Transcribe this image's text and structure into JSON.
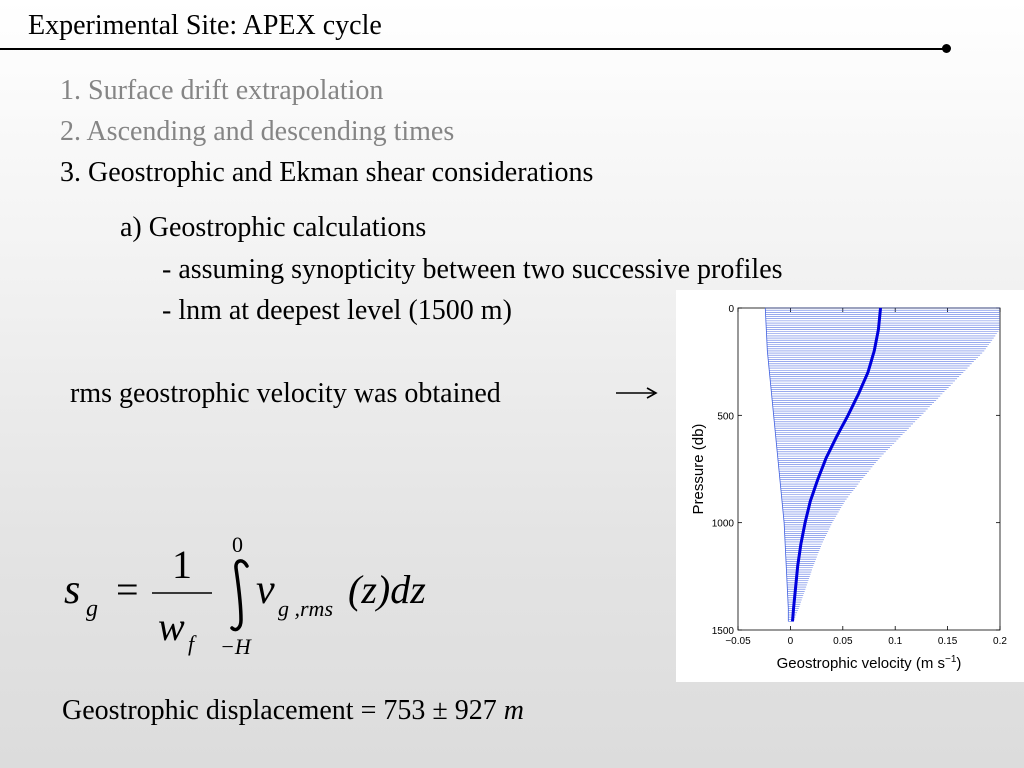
{
  "slide": {
    "title": "Experimental Site: APEX cycle",
    "items": [
      "1. Surface drift extrapolation",
      "2. Ascending and descending times",
      "3. Geostrophic and Ekman shear considerations"
    ],
    "sub_a": "a) Geostrophic calculations",
    "bullet1": "- assuming synopticity between two successive profiles",
    "bullet2": "- lnm at deepest level (1500 m)",
    "rms_text": "rms geostrophic velocity was obtained",
    "formula": {
      "lhs": "s",
      "lhs_sub": "g",
      "equals": "=",
      "numerator": "1",
      "denominator": "w",
      "denominator_sub": "f",
      "upper_limit": "0",
      "lower_limit": "−H",
      "integrand": "v",
      "integrand_sub": "g ,rms",
      "tail": "(z)dz"
    },
    "displacement_prefix": "Geostrophic displacement = 753 ± 927 ",
    "displacement_unit": "m"
  },
  "chart_data": {
    "type": "line",
    "ylabel": "Pressure (db)",
    "xlabel": "Geostrophic velocity (m s",
    "xlabel_sup": "−1",
    "xlabel_tail": ")",
    "xlim": [
      -0.05,
      0.2
    ],
    "ylim": [
      0,
      1500
    ],
    "y_reversed": true,
    "xticks": [
      "−0.05",
      "0",
      "0.05",
      "0.1",
      "0.15",
      "0.2"
    ],
    "yticks": [
      "0",
      "500",
      "1000",
      "1500"
    ],
    "series": [
      {
        "role": "mean",
        "color": "#0000dd",
        "pressure": [
          0,
          100,
          200,
          300,
          400,
          500,
          600,
          700,
          800,
          900,
          1000,
          1100,
          1200,
          1300,
          1400,
          1460
        ],
        "velocity": [
          0.086,
          0.084,
          0.08,
          0.074,
          0.065,
          0.055,
          0.044,
          0.034,
          0.026,
          0.019,
          0.014,
          0.01,
          0.007,
          0.005,
          0.003,
          0.002
        ]
      },
      {
        "role": "right-envelope",
        "color": "#4060e0",
        "pressure": [
          0,
          100,
          200,
          300,
          400,
          500,
          600,
          700,
          800,
          900,
          1000,
          1100,
          1200,
          1300,
          1400,
          1460
        ],
        "velocity": [
          0.2,
          0.2,
          0.185,
          0.165,
          0.145,
          0.125,
          0.105,
          0.085,
          0.068,
          0.052,
          0.04,
          0.03,
          0.022,
          0.015,
          0.008,
          0.003
        ]
      },
      {
        "role": "left-envelope",
        "color": "#4060e0",
        "pressure": [
          0,
          100,
          200,
          300,
          400,
          500,
          600,
          700,
          800,
          900,
          1000,
          1100,
          1200,
          1300,
          1400,
          1460
        ],
        "velocity": [
          -0.024,
          -0.023,
          -0.022,
          -0.02,
          -0.018,
          -0.016,
          -0.014,
          -0.012,
          -0.01,
          -0.008,
          -0.006,
          -0.005,
          -0.004,
          -0.003,
          -0.002,
          -0.002
        ]
      }
    ]
  }
}
